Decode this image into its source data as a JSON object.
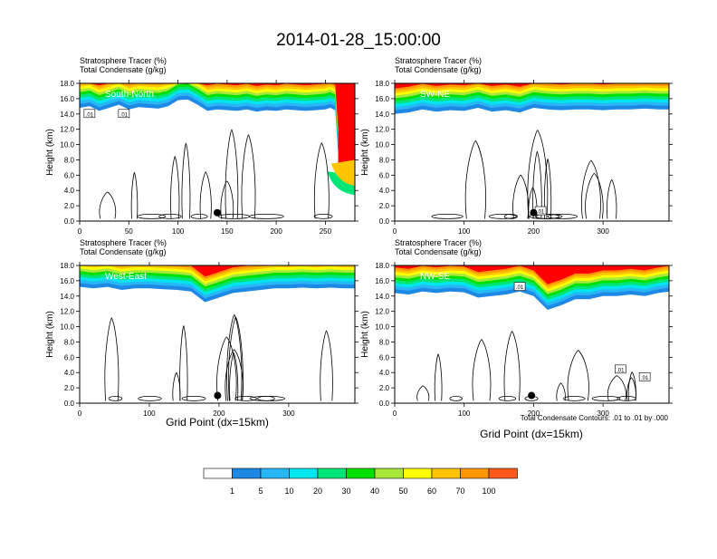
{
  "title": "2014-01-28_15:00:00",
  "panel_label_line1": "Stratosphere Tracer   (%)",
  "panel_label_line2": "Total Condensate   (g/kg)",
  "ylabel": "Height (km)",
  "xlabel": "Grid Point (dx=15km)",
  "contour_note": "Total Condensate Contours: .01 to .01 by .000",
  "colors": {
    "levels": [
      "#ffffff",
      "#1e88e5",
      "#29b6f6",
      "#00e5ee",
      "#00e676",
      "#00e000",
      "#a8e83a",
      "#ffff00",
      "#ffc400",
      "#ff9800",
      "#ff5a1e",
      "#ff0000"
    ],
    "contour": "#000000"
  },
  "colorbar": {
    "labels": [
      "1",
      "5",
      "10",
      "20",
      "30",
      "40",
      "50",
      "60",
      "70",
      "100"
    ]
  },
  "chart_data": [
    {
      "type": "heatmap",
      "name": "South-North",
      "xlim": [
        0,
        280
      ],
      "ylim": [
        0,
        18
      ],
      "xticks": [
        "0",
        "50",
        "100",
        "150",
        "200",
        "250"
      ],
      "xtick_values": [
        0,
        50,
        100,
        150,
        200,
        250
      ],
      "yticks": [
        "0.0",
        "2.0",
        "4.0",
        "6.0",
        "8.0",
        "10.0",
        "12.0",
        "14.0",
        "16.0",
        "18.0"
      ],
      "ytick_values": [
        0,
        2,
        4,
        6,
        8,
        10,
        12,
        14,
        16,
        18
      ],
      "tracer_boundary_km": {
        "x": [
          0,
          10,
          20,
          30,
          40,
          50,
          60,
          70,
          80,
          90,
          100,
          110,
          120,
          130,
          140,
          150,
          160,
          170,
          180,
          190,
          200,
          210,
          220,
          230,
          240,
          250,
          255,
          260,
          265,
          270,
          275,
          280
        ],
        "y": [
          14.8,
          15.0,
          14.4,
          14.8,
          15.2,
          14.6,
          14.9,
          14.8,
          14.7,
          15.0,
          15.8,
          15.9,
          15.2,
          14.4,
          14.6,
          14.5,
          14.4,
          14.6,
          14.3,
          14.5,
          14.4,
          14.6,
          14.5,
          14.4,
          14.5,
          14.6,
          14.8,
          14.5,
          5.2,
          4.6,
          4.0,
          3.6
        ]
      },
      "marker_km": [
        140,
        1.1
      ],
      "contour_labels": [
        [
          10,
          14.0,
          ".01"
        ],
        [
          45,
          14.0,
          ".01"
        ]
      ]
    },
    {
      "type": "heatmap",
      "name": "SW-NE",
      "xlim": [
        0,
        395
      ],
      "ylim": [
        0,
        18
      ],
      "xticks": [
        "0",
        "100",
        "200",
        "300"
      ],
      "xtick_values": [
        0,
        100,
        200,
        300
      ],
      "yticks": [
        "0.0",
        "2.0",
        "4.0",
        "6.0",
        "8.0",
        "10.0",
        "12.0",
        "14.0",
        "16.0",
        "18.0"
      ],
      "ytick_values": [
        0,
        2,
        4,
        6,
        8,
        10,
        12,
        14,
        16,
        18
      ],
      "tracer_boundary_km": {
        "x": [
          0,
          20,
          40,
          60,
          80,
          100,
          120,
          140,
          160,
          180,
          200,
          220,
          240,
          260,
          280,
          300,
          320,
          340,
          360,
          380,
          395
        ],
        "y": [
          14.0,
          14.2,
          14.6,
          14.3,
          14.5,
          14.4,
          14.8,
          14.3,
          14.5,
          14.2,
          14.8,
          14.6,
          14.5,
          14.6,
          14.6,
          14.5,
          14.6,
          14.6,
          14.7,
          14.6,
          14.6
        ]
      },
      "marker_km": [
        200,
        1.1
      ],
      "contour_labels": [
        [
          210,
          1.3,
          ".01"
        ]
      ]
    },
    {
      "type": "heatmap",
      "name": "West-East",
      "xlim": [
        0,
        395
      ],
      "ylim": [
        0,
        18
      ],
      "xticks": [
        "0",
        "100",
        "200",
        "300"
      ],
      "xtick_values": [
        0,
        100,
        200,
        300
      ],
      "yticks": [
        "0.0",
        "2.0",
        "4.0",
        "6.0",
        "8.0",
        "10.0",
        "12.0",
        "14.0",
        "16.0",
        "18.0"
      ],
      "ytick_values": [
        0,
        2,
        4,
        6,
        8,
        10,
        12,
        14,
        16,
        18
      ],
      "tracer_boundary_km": {
        "x": [
          0,
          20,
          40,
          60,
          80,
          100,
          120,
          140,
          160,
          180,
          200,
          220,
          240,
          260,
          280,
          300,
          320,
          340,
          360,
          380,
          395
        ],
        "y": [
          15.2,
          15.0,
          15.2,
          14.8,
          15.0,
          15.0,
          14.9,
          14.8,
          14.6,
          13.2,
          13.8,
          14.4,
          14.6,
          14.8,
          15.0,
          15.0,
          15.1,
          15.0,
          15.1,
          15.0,
          15.0
        ]
      },
      "marker_km": [
        198,
        1.0
      ],
      "contour_labels": []
    },
    {
      "type": "heatmap",
      "name": "NW-SE",
      "xlim": [
        0,
        395
      ],
      "ylim": [
        0,
        18
      ],
      "xticks": [
        "0",
        "100",
        "200",
        "300"
      ],
      "xtick_values": [
        0,
        100,
        200,
        300
      ],
      "yticks": [
        "0.0",
        "2.0",
        "4.0",
        "6.0",
        "8.0",
        "10.0",
        "12.0",
        "14.0",
        "16.0",
        "18.0"
      ],
      "ytick_values": [
        0,
        2,
        4,
        6,
        8,
        10,
        12,
        14,
        16,
        18
      ],
      "tracer_boundary_km": {
        "x": [
          0,
          20,
          40,
          60,
          80,
          100,
          120,
          140,
          160,
          180,
          200,
          220,
          240,
          260,
          280,
          300,
          320,
          340,
          360,
          380,
          395
        ],
        "y": [
          14.4,
          14.2,
          14.6,
          14.4,
          14.6,
          14.5,
          13.8,
          14.0,
          14.2,
          14.6,
          14.0,
          12.2,
          12.8,
          13.6,
          13.6,
          14.0,
          14.0,
          14.2,
          14.0,
          14.4,
          14.6
        ]
      },
      "marker_km": [
        197,
        1.0
      ],
      "contour_labels": [
        [
          180,
          15.2,
          ".01"
        ],
        [
          325,
          4.4,
          ".01"
        ],
        [
          360,
          3.4,
          ".01"
        ]
      ]
    }
  ]
}
